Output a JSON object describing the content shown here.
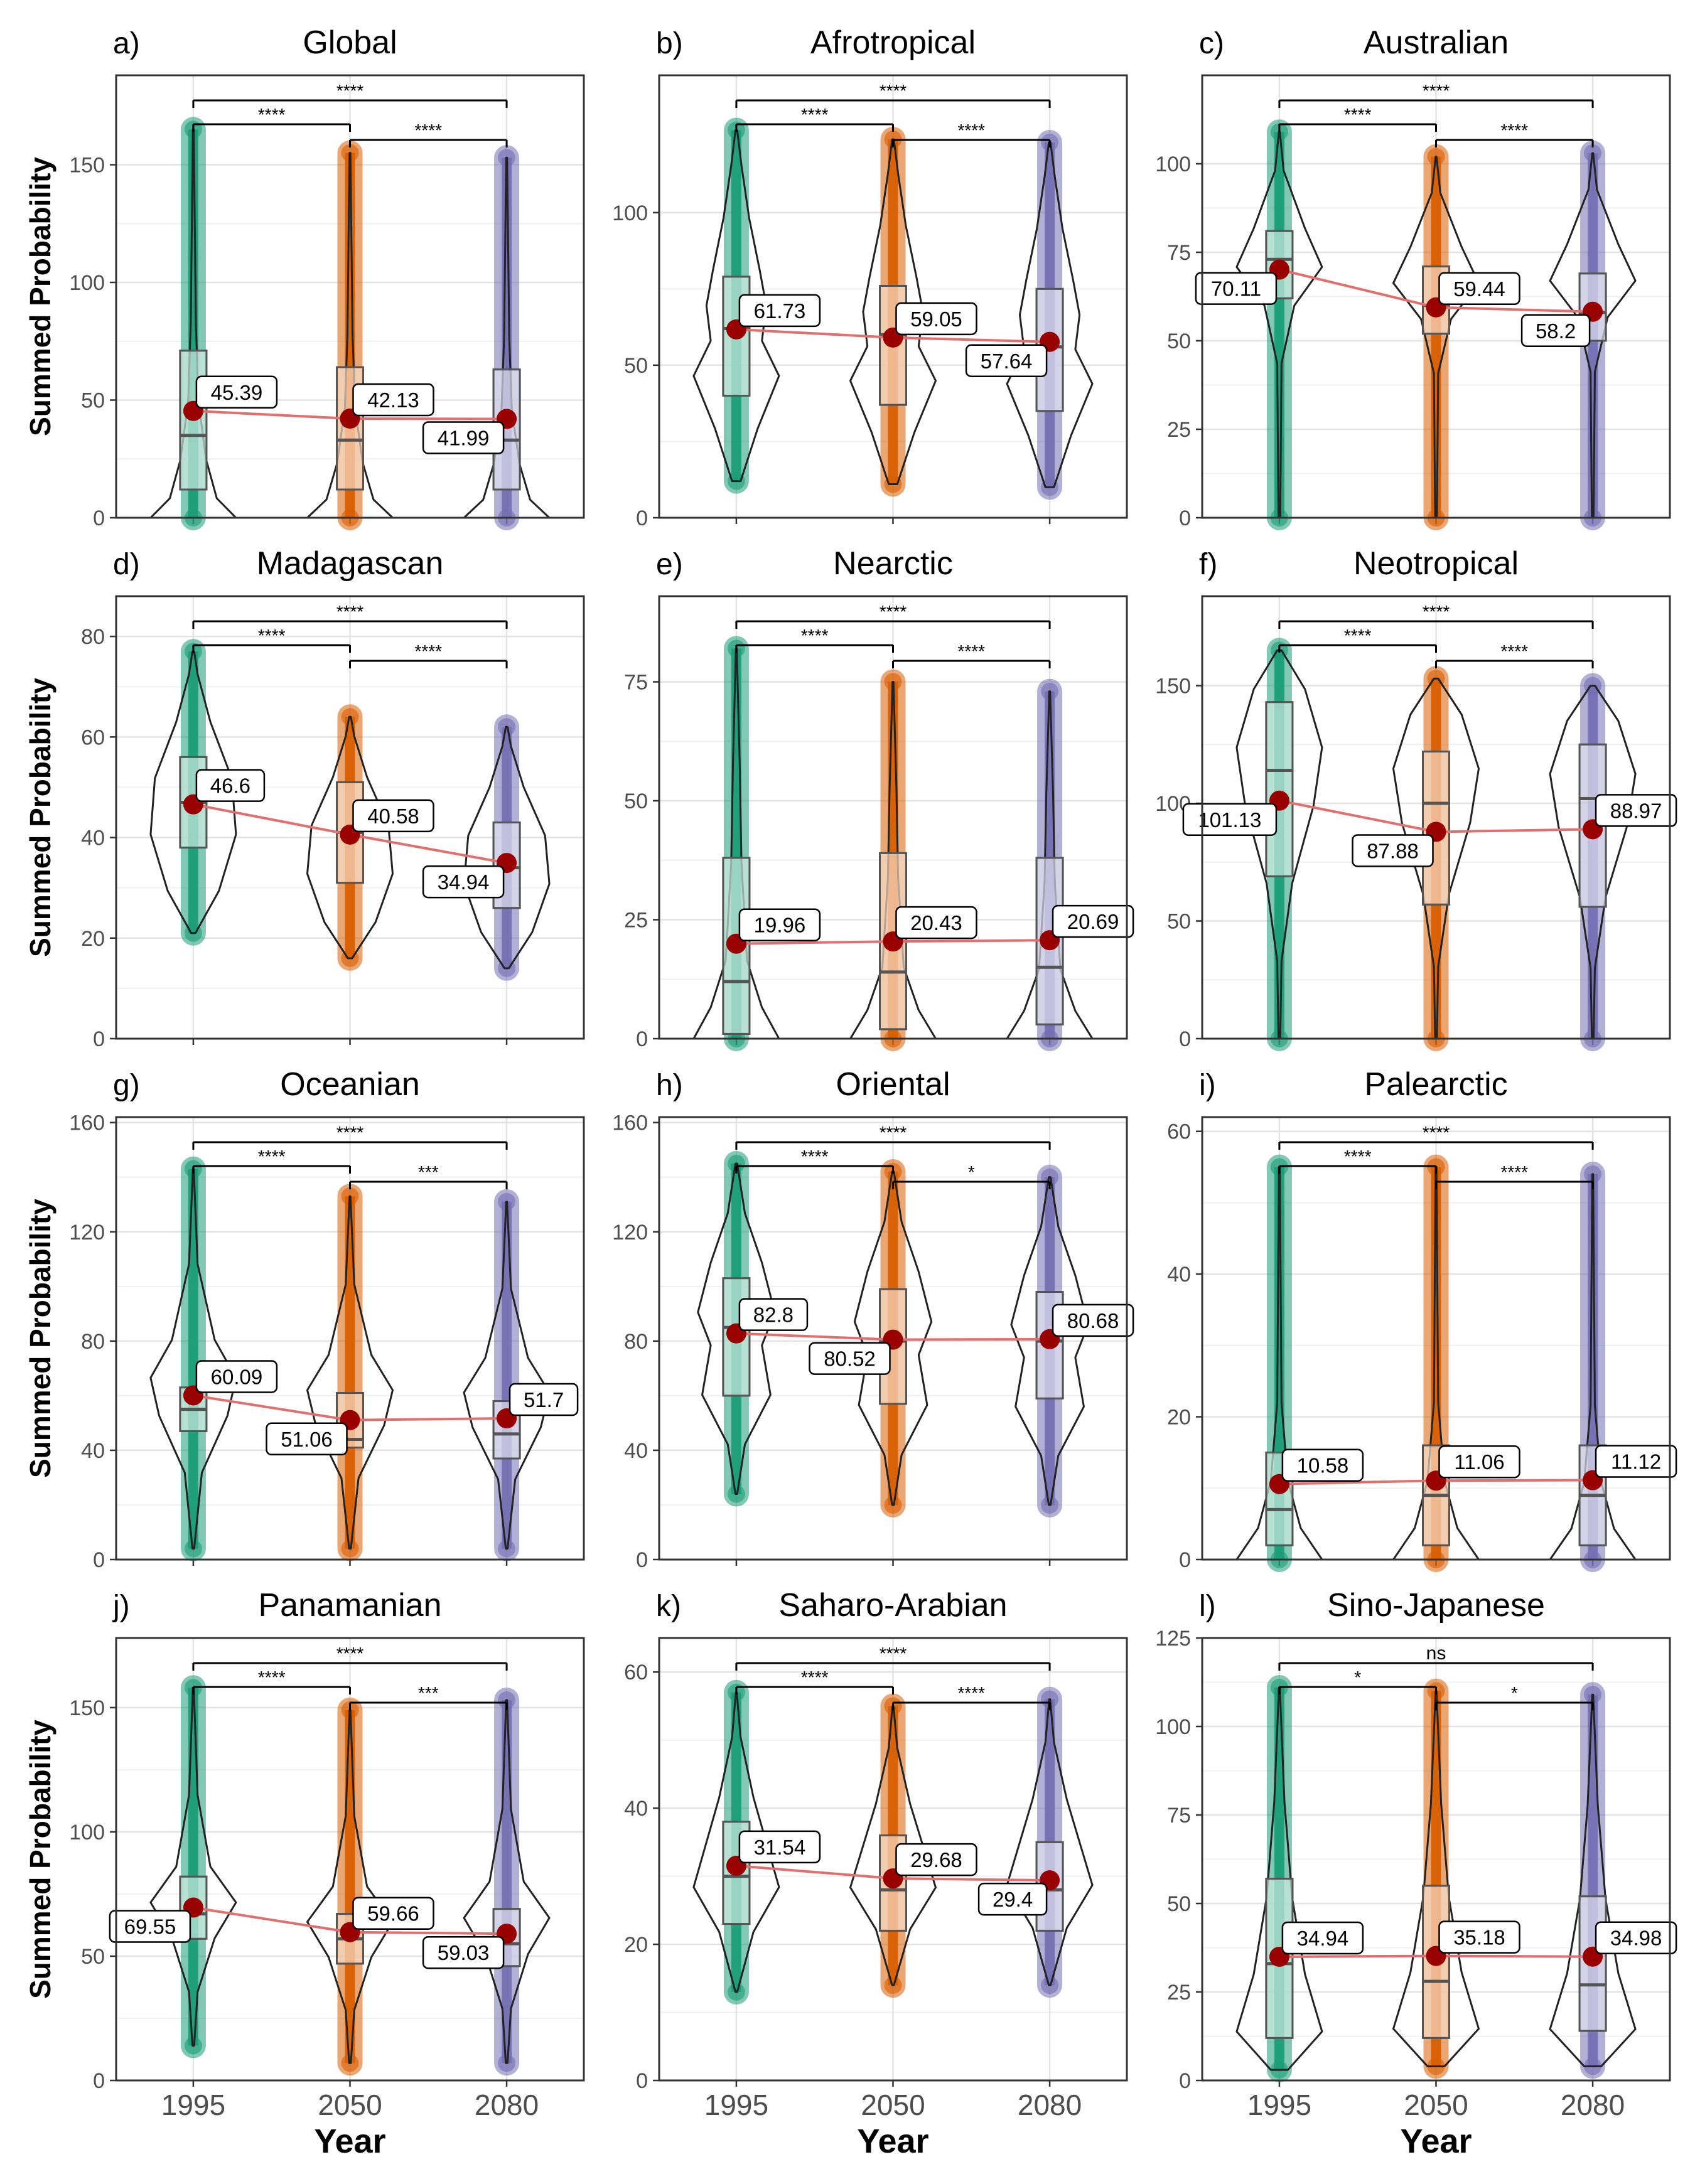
{
  "figure": {
    "ylabel": "Summed Probability",
    "xlabel": "Year"
  },
  "colors": {
    "1995": "#1b9e77",
    "2050": "#d95f02",
    "2080": "#7570b3",
    "mean_point": "#990000",
    "mean_line": "#e07070"
  },
  "chart_data": [
    {
      "type": "violin",
      "panel_letter": "a)",
      "title": "Global",
      "x": [
        "1995",
        "2050",
        "2080"
      ],
      "ylim": [
        0,
        188
      ],
      "yticks": [
        0,
        50,
        100,
        150
      ],
      "means": [
        45.39,
        42.13,
        41.99
      ],
      "mean_labels": [
        "45.39",
        "42.13",
        "41.99"
      ],
      "box": [
        {
          "q1": 12,
          "median": 35,
          "q3": 71
        },
        {
          "q1": 12,
          "median": 33,
          "q3": 64
        },
        {
          "q1": 12,
          "median": 33,
          "q3": 63
        }
      ],
      "range": [
        [
          0,
          165
        ],
        [
          0,
          155
        ],
        [
          0,
          153
        ]
      ],
      "comparisons": [
        {
          "pair": [
            "1995",
            "2050"
          ],
          "label": "****"
        },
        {
          "pair": [
            "2050",
            "2080"
          ],
          "label": "****"
        },
        {
          "pair": [
            "1995",
            "2080"
          ],
          "label": "****"
        }
      ]
    },
    {
      "type": "violin",
      "panel_letter": "b)",
      "title": "Afrotropical",
      "x": [
        "1995",
        "2050",
        "2080"
      ],
      "ylim": [
        0,
        145
      ],
      "yticks": [
        0,
        50,
        100
      ],
      "means": [
        61.73,
        59.05,
        57.64
      ],
      "mean_labels": [
        "61.73",
        "59.05",
        "57.64"
      ],
      "box": [
        {
          "q1": 40,
          "median": 62,
          "q3": 79
        },
        {
          "q1": 37,
          "median": 60,
          "q3": 76
        },
        {
          "q1": 35,
          "median": 56,
          "q3": 75
        }
      ],
      "range": [
        [
          12,
          127
        ],
        [
          11,
          124
        ],
        [
          10,
          123
        ]
      ],
      "comparisons": [
        {
          "pair": [
            "1995",
            "2050"
          ],
          "label": "****"
        },
        {
          "pair": [
            "2050",
            "2080"
          ],
          "label": "****"
        },
        {
          "pair": [
            "1995",
            "2080"
          ],
          "label": "****"
        }
      ]
    },
    {
      "type": "violin",
      "panel_letter": "c)",
      "title": "Australian",
      "x": [
        "1995",
        "2050",
        "2080"
      ],
      "ylim": [
        0,
        125
      ],
      "yticks": [
        0,
        25,
        50,
        75,
        100
      ],
      "means": [
        70.11,
        59.44,
        58.2
      ],
      "mean_labels": [
        "70.11",
        "59.44",
        "58.2"
      ],
      "box": [
        {
          "q1": 62,
          "median": 73,
          "q3": 81
        },
        {
          "q1": 52,
          "median": 60,
          "q3": 71
        },
        {
          "q1": 50,
          "median": 58,
          "q3": 69
        }
      ],
      "range": [
        [
          0,
          109
        ],
        [
          0,
          102
        ],
        [
          0,
          103
        ]
      ],
      "comparisons": [
        {
          "pair": [
            "1995",
            "2050"
          ],
          "label": "****"
        },
        {
          "pair": [
            "2050",
            "2080"
          ],
          "label": "****"
        },
        {
          "pair": [
            "1995",
            "2080"
          ],
          "label": "****"
        }
      ]
    },
    {
      "type": "violin",
      "panel_letter": "d)",
      "title": "Madagascan",
      "x": [
        "1995",
        "2050",
        "2080"
      ],
      "ylim": [
        0,
        88
      ],
      "yticks": [
        0,
        20,
        40,
        60,
        80
      ],
      "means": [
        46.6,
        40.58,
        34.94
      ],
      "mean_labels": [
        "46.6",
        "40.58",
        "34.94"
      ],
      "box": [
        {
          "q1": 38,
          "median": 47,
          "q3": 56
        },
        {
          "q1": 31,
          "median": 41,
          "q3": 51
        },
        {
          "q1": 26,
          "median": 34,
          "q3": 43
        }
      ],
      "range": [
        [
          21,
          77
        ],
        [
          16,
          64
        ],
        [
          14,
          62
        ]
      ],
      "comparisons": [
        {
          "pair": [
            "1995",
            "2050"
          ],
          "label": "****"
        },
        {
          "pair": [
            "2050",
            "2080"
          ],
          "label": "****"
        },
        {
          "pair": [
            "1995",
            "2080"
          ],
          "label": "****"
        }
      ]
    },
    {
      "type": "violin",
      "panel_letter": "e)",
      "title": "Nearctic",
      "x": [
        "1995",
        "2050",
        "2080"
      ],
      "ylim": [
        0,
        93
      ],
      "yticks": [
        0,
        25,
        50,
        75
      ],
      "means": [
        19.96,
        20.43,
        20.69
      ],
      "mean_labels": [
        "19.96",
        "20.43",
        "20.69"
      ],
      "box": [
        {
          "q1": 1,
          "median": 12,
          "q3": 38
        },
        {
          "q1": 2,
          "median": 14,
          "q3": 39
        },
        {
          "q1": 3,
          "median": 15,
          "q3": 38
        }
      ],
      "range": [
        [
          0,
          82
        ],
        [
          0,
          75
        ],
        [
          0,
          73
        ]
      ],
      "comparisons": [
        {
          "pair": [
            "1995",
            "2050"
          ],
          "label": "****"
        },
        {
          "pair": [
            "2050",
            "2080"
          ],
          "label": "****"
        },
        {
          "pair": [
            "1995",
            "2080"
          ],
          "label": "****"
        }
      ]
    },
    {
      "type": "violin",
      "panel_letter": "f)",
      "title": "Neotropical",
      "x": [
        "1995",
        "2050",
        "2080"
      ],
      "ylim": [
        0,
        188
      ],
      "yticks": [
        0,
        50,
        100,
        150
      ],
      "means": [
        101.13,
        87.88,
        88.97
      ],
      "mean_labels": [
        "101.13",
        "87.88",
        "88.97"
      ],
      "box": [
        {
          "q1": 69,
          "median": 114,
          "q3": 143
        },
        {
          "q1": 57,
          "median": 100,
          "q3": 122
        },
        {
          "q1": 56,
          "median": 102,
          "q3": 125
        }
      ],
      "range": [
        [
          0,
          165
        ],
        [
          0,
          153
        ],
        [
          0,
          150
        ]
      ],
      "comparisons": [
        {
          "pair": [
            "1995",
            "2050"
          ],
          "label": "****"
        },
        {
          "pair": [
            "2050",
            "2080"
          ],
          "label": "****"
        },
        {
          "pair": [
            "1995",
            "2080"
          ],
          "label": "****"
        }
      ]
    },
    {
      "type": "violin",
      "panel_letter": "g)",
      "title": "Oceanian",
      "x": [
        "1995",
        "2050",
        "2080"
      ],
      "ylim": [
        0,
        162
      ],
      "yticks": [
        0,
        40,
        80,
        120,
        160
      ],
      "means": [
        60.09,
        51.06,
        51.7
      ],
      "mean_labels": [
        "60.09",
        "51.06",
        "51.7"
      ],
      "box": [
        {
          "q1": 47,
          "median": 55,
          "q3": 63
        },
        {
          "q1": 41,
          "median": 44,
          "q3": 61
        },
        {
          "q1": 37,
          "median": 46,
          "q3": 58
        }
      ],
      "range": [
        [
          4,
          143
        ],
        [
          4,
          133
        ],
        [
          4,
          131
        ]
      ],
      "comparisons": [
        {
          "pair": [
            "1995",
            "2050"
          ],
          "label": "****"
        },
        {
          "pair": [
            "2050",
            "2080"
          ],
          "label": "***"
        },
        {
          "pair": [
            "1995",
            "2080"
          ],
          "label": "****"
        }
      ]
    },
    {
      "type": "violin",
      "panel_letter": "h)",
      "title": "Oriental",
      "x": [
        "1995",
        "2050",
        "2080"
      ],
      "ylim": [
        0,
        162
      ],
      "yticks": [
        0,
        40,
        80,
        120,
        160
      ],
      "means": [
        82.8,
        80.52,
        80.68
      ],
      "mean_labels": [
        "82.8",
        "80.52",
        "80.68"
      ],
      "box": [
        {
          "q1": 60,
          "median": 85,
          "q3": 103
        },
        {
          "q1": 57,
          "median": 80,
          "q3": 99
        },
        {
          "q1": 59,
          "median": 80,
          "q3": 98
        }
      ],
      "range": [
        [
          24,
          145
        ],
        [
          20,
          142
        ],
        [
          20,
          140
        ]
      ],
      "comparisons": [
        {
          "pair": [
            "1995",
            "2050"
          ],
          "label": "****"
        },
        {
          "pair": [
            "2050",
            "2080"
          ],
          "label": "*"
        },
        {
          "pair": [
            "1995",
            "2080"
          ],
          "label": "****"
        }
      ]
    },
    {
      "type": "violin",
      "panel_letter": "i)",
      "title": "Palearctic",
      "x": [
        "1995",
        "2050",
        "2080"
      ],
      "ylim": [
        0,
        62
      ],
      "yticks": [
        0,
        20,
        40,
        60
      ],
      "means": [
        10.58,
        11.06,
        11.12
      ],
      "mean_labels": [
        "10.58",
        "11.06",
        "11.12"
      ],
      "box": [
        {
          "q1": 2,
          "median": 7,
          "q3": 15
        },
        {
          "q1": 2,
          "median": 9,
          "q3": 16
        },
        {
          "q1": 2,
          "median": 9,
          "q3": 16
        }
      ],
      "range": [
        [
          0,
          55
        ],
        [
          0,
          55
        ],
        [
          0,
          54
        ]
      ],
      "comparisons": [
        {
          "pair": [
            "1995",
            "2050"
          ],
          "label": "****"
        },
        {
          "pair": [
            "2050",
            "2080"
          ],
          "label": "****"
        },
        {
          "pair": [
            "1995",
            "2080"
          ],
          "label": "****"
        }
      ]
    },
    {
      "type": "violin",
      "panel_letter": "j)",
      "title": "Panamanian",
      "x": [
        "1995",
        "2050",
        "2080"
      ],
      "ylim": [
        0,
        178
      ],
      "yticks": [
        0,
        50,
        100,
        150
      ],
      "means": [
        69.55,
        59.66,
        59.03
      ],
      "mean_labels": [
        "69.55",
        "59.66",
        "59.03"
      ],
      "box": [
        {
          "q1": 57,
          "median": 67,
          "q3": 82
        },
        {
          "q1": 47,
          "median": 57,
          "q3": 67
        },
        {
          "q1": 46,
          "median": 55,
          "q3": 69
        }
      ],
      "range": [
        [
          14,
          158
        ],
        [
          7,
          149
        ],
        [
          7,
          153
        ]
      ],
      "comparisons": [
        {
          "pair": [
            "1995",
            "2050"
          ],
          "label": "****"
        },
        {
          "pair": [
            "2050",
            "2080"
          ],
          "label": "***"
        },
        {
          "pair": [
            "1995",
            "2080"
          ],
          "label": "****"
        }
      ]
    },
    {
      "type": "violin",
      "panel_letter": "k)",
      "title": "Saharo-Arabian",
      "x": [
        "1995",
        "2050",
        "2080"
      ],
      "ylim": [
        0,
        65
      ],
      "yticks": [
        0,
        20,
        40,
        60
      ],
      "means": [
        31.54,
        29.68,
        29.4
      ],
      "mean_labels": [
        "31.54",
        "29.68",
        "29.4"
      ],
      "box": [
        {
          "q1": 23,
          "median": 30,
          "q3": 38
        },
        {
          "q1": 22,
          "median": 28,
          "q3": 36
        },
        {
          "q1": 22,
          "median": 28,
          "q3": 35
        }
      ],
      "range": [
        [
          13,
          57
        ],
        [
          14,
          55
        ],
        [
          14,
          56
        ]
      ],
      "comparisons": [
        {
          "pair": [
            "1995",
            "2050"
          ],
          "label": "****"
        },
        {
          "pair": [
            "2050",
            "2080"
          ],
          "label": "****"
        },
        {
          "pair": [
            "1995",
            "2080"
          ],
          "label": "****"
        }
      ]
    },
    {
      "type": "violin",
      "panel_letter": "l)",
      "title": "Sino-Japanese",
      "x": [
        "1995",
        "2050",
        "2080"
      ],
      "ylim": [
        0,
        125
      ],
      "yticks": [
        0,
        25,
        50,
        75,
        100,
        125
      ],
      "means": [
        34.94,
        35.18,
        34.98
      ],
      "mean_labels": [
        "34.94",
        "35.18",
        "34.98"
      ],
      "box": [
        {
          "q1": 12,
          "median": 33,
          "q3": 57
        },
        {
          "q1": 12,
          "median": 28,
          "q3": 55
        },
        {
          "q1": 14,
          "median": 27,
          "q3": 52
        }
      ],
      "range": [
        [
          3,
          111
        ],
        [
          4,
          110
        ],
        [
          4,
          109
        ]
      ],
      "comparisons": [
        {
          "pair": [
            "1995",
            "2050"
          ],
          "label": "*"
        },
        {
          "pair": [
            "2050",
            "2080"
          ],
          "label": "*"
        },
        {
          "pair": [
            "1995",
            "2080"
          ],
          "label": "ns"
        }
      ]
    }
  ]
}
